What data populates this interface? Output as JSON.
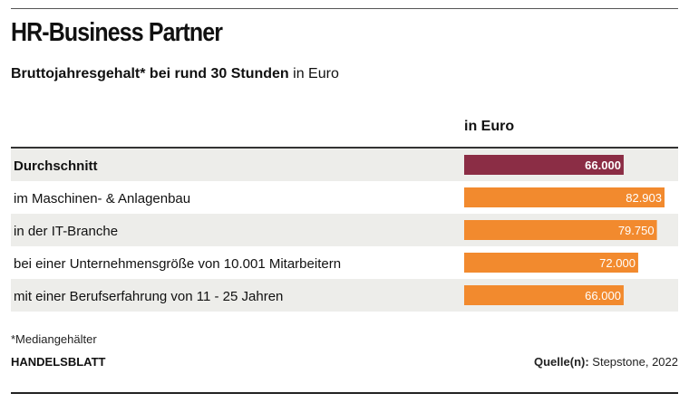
{
  "title": "HR-Business Partner",
  "subtitle": {
    "bold": "Bruttojahresgehalt* bei rund 30 Stunden",
    "normal": "in Euro"
  },
  "column_header": "in Euro",
  "footnote": "*Mediangehälter",
  "brand": "HANDELSBLATT",
  "source": {
    "label": "Quelle(n):",
    "text": "Stepstone, 2022"
  },
  "colors": {
    "highlight_bar": "#8b2d45",
    "bar": "#f28a2e",
    "row_shade": "#ededea"
  },
  "chart_data": {
    "type": "bar",
    "orientation": "horizontal",
    "categories": [
      "Durchschnitt",
      "im Maschinen- & Anlagenbau",
      "in der IT-Branche",
      "bei einer Unternehmensgröße von 10.001 Mitarbeitern",
      "mit einer Berufserfahrung von 11 - 25 Jahren"
    ],
    "values": [
      66000,
      82903,
      79750,
      72000,
      66000
    ],
    "value_labels": [
      "66.000",
      "82.903",
      "79.750",
      "72.000",
      "66.000"
    ],
    "highlight_index": 0,
    "ylabel": "in Euro",
    "xlim": [
      0,
      82903
    ]
  }
}
